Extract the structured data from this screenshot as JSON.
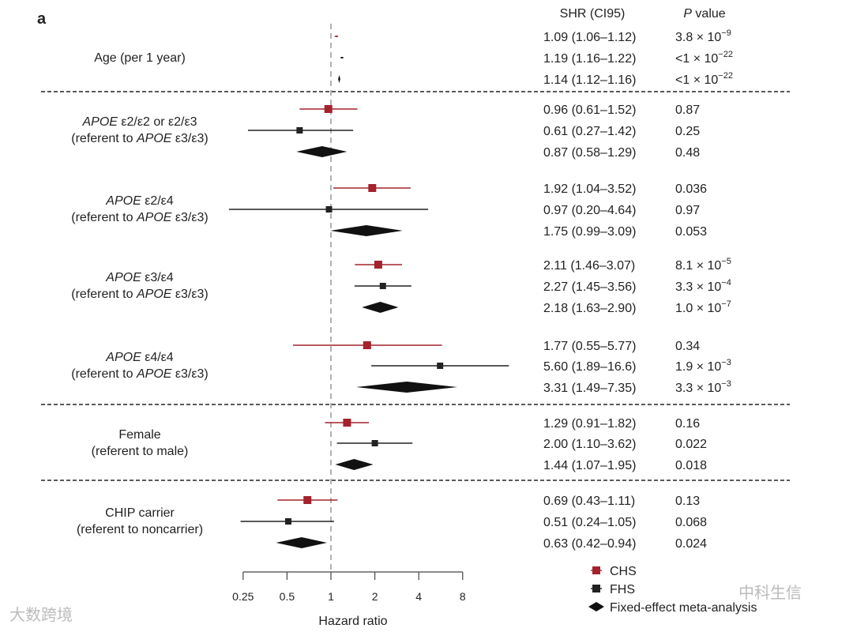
{
  "panel_label": "a",
  "colors": {
    "CHS": "#a3222b",
    "FHS": "#222222",
    "Meta": "#111111",
    "refline": "#999999"
  },
  "watermarks": [
    "大数跨境",
    "中科生信"
  ],
  "chart_data": {
    "type": "forest",
    "xlabel": "Hazard ratio",
    "xscale": "log2",
    "xlim": [
      0.25,
      8
    ],
    "xticks": [
      "0.25",
      "0.5",
      "1",
      "2",
      "4",
      "8"
    ],
    "xtick_values": [
      0.25,
      0.5,
      1,
      2,
      4,
      8
    ],
    "reference_line": 1,
    "column_headers": {
      "shr": "SHR (CI95)",
      "p": "P value"
    },
    "legend": [
      {
        "key": "CHS",
        "label": "CHS",
        "marker": "square"
      },
      {
        "key": "FHS",
        "label": "FHS",
        "marker": "square"
      },
      {
        "key": "Meta",
        "label": "Fixed-effect meta-analysis",
        "marker": "diamond"
      }
    ],
    "legend_position": "bottom-right",
    "groups": [
      {
        "label": [
          "Age (per 1 year)"
        ],
        "rows": [
          {
            "study": "CHS",
            "hr": 1.09,
            "lo": 1.06,
            "hi": 1.12,
            "text": "1.09 (1.06–1.12)",
            "p": {
              "m": "3.8 × 10",
              "e": "−9"
            }
          },
          {
            "study": "FHS",
            "hr": 1.19,
            "lo": 1.16,
            "hi": 1.22,
            "text": "1.19 (1.16–1.22)",
            "p": {
              "m": "<1 × 10",
              "e": "−22"
            }
          },
          {
            "study": "Meta",
            "hr": 1.14,
            "lo": 1.12,
            "hi": 1.16,
            "text": "1.14 (1.12–1.16)",
            "p": {
              "m": "<1 × 10",
              "e": "−22"
            }
          }
        ]
      },
      {
        "label": [
          "APOE ε2/ε2 or ε2/ε3",
          "(referent to APOE ε3/ε3)"
        ],
        "rows": [
          {
            "study": "CHS",
            "hr": 0.96,
            "lo": 0.61,
            "hi": 1.52,
            "text": "0.96 (0.61–1.52)",
            "p": {
              "m": "0.87"
            }
          },
          {
            "study": "FHS",
            "hr": 0.61,
            "lo": 0.27,
            "hi": 1.42,
            "text": "0.61 (0.27–1.42)",
            "p": {
              "m": "0.25"
            }
          },
          {
            "study": "Meta",
            "hr": 0.87,
            "lo": 0.58,
            "hi": 1.29,
            "text": "0.87 (0.58–1.29)",
            "p": {
              "m": "0.48"
            }
          }
        ]
      },
      {
        "label": [
          "APOE ε2/ε4",
          "(referent to APOE ε3/ε3)"
        ],
        "rows": [
          {
            "study": "CHS",
            "hr": 1.92,
            "lo": 1.04,
            "hi": 3.52,
            "text": "1.92 (1.04–3.52)",
            "p": {
              "m": "0.036"
            }
          },
          {
            "study": "FHS",
            "hr": 0.97,
            "lo": 0.2,
            "hi": 4.64,
            "text": "0.97 (0.20–4.64)",
            "p": {
              "m": "0.97"
            }
          },
          {
            "study": "Meta",
            "hr": 1.75,
            "lo": 0.99,
            "hi": 3.09,
            "text": "1.75 (0.99–3.09)",
            "p": {
              "m": "0.053"
            }
          }
        ]
      },
      {
        "label": [
          "APOE ε3/ε4",
          "(referent to APOE ε3/ε3)"
        ],
        "rows": [
          {
            "study": "CHS",
            "hr": 2.11,
            "lo": 1.46,
            "hi": 3.07,
            "text": "2.11 (1.46–3.07)",
            "p": {
              "m": "8.1 × 10",
              "e": "−5"
            }
          },
          {
            "study": "FHS",
            "hr": 2.27,
            "lo": 1.45,
            "hi": 3.56,
            "text": "2.27 (1.45–3.56)",
            "p": {
              "m": "3.3 × 10",
              "e": "−4"
            }
          },
          {
            "study": "Meta",
            "hr": 2.18,
            "lo": 1.63,
            "hi": 2.9,
            "text": "2.18 (1.63–2.90)",
            "p": {
              "m": "1.0 × 10",
              "e": "−7"
            }
          }
        ]
      },
      {
        "label": [
          "APOE ε4/ε4",
          "(referent to APOE ε3/ε3)"
        ],
        "rows": [
          {
            "study": "CHS",
            "hr": 1.77,
            "lo": 0.55,
            "hi": 5.77,
            "text": "1.77 (0.55–5.77)",
            "p": {
              "m": "0.34"
            }
          },
          {
            "study": "FHS",
            "hr": 5.6,
            "lo": 1.89,
            "hi": 16.6,
            "text": "5.60 (1.89–16.6)",
            "p": {
              "m": "1.9 × 10",
              "e": "−3"
            }
          },
          {
            "study": "Meta",
            "hr": 3.31,
            "lo": 1.49,
            "hi": 7.35,
            "text": "3.31 (1.49–7.35)",
            "p": {
              "m": "3.3 × 10",
              "e": "−3"
            }
          }
        ]
      },
      {
        "label": [
          "Female",
          "(referent to male)"
        ],
        "rows": [
          {
            "study": "CHS",
            "hr": 1.29,
            "lo": 0.91,
            "hi": 1.82,
            "text": "1.29 (0.91–1.82)",
            "p": {
              "m": "0.16"
            }
          },
          {
            "study": "FHS",
            "hr": 2.0,
            "lo": 1.1,
            "hi": 3.62,
            "text": "2.00 (1.10–3.62)",
            "p": {
              "m": "0.022"
            }
          },
          {
            "study": "Meta",
            "hr": 1.44,
            "lo": 1.07,
            "hi": 1.95,
            "text": "1.44 (1.07–1.95)",
            "p": {
              "m": "0.018"
            }
          }
        ]
      },
      {
        "label": [
          "CHIP carrier",
          "(referent to noncarrier)"
        ],
        "rows": [
          {
            "study": "CHS",
            "hr": 0.69,
            "lo": 0.43,
            "hi": 1.11,
            "text": "0.69 (0.43–1.11)",
            "p": {
              "m": "0.13"
            }
          },
          {
            "study": "FHS",
            "hr": 0.51,
            "lo": 0.24,
            "hi": 1.05,
            "text": "0.51 (0.24–1.05)",
            "p": {
              "m": "0.068"
            }
          },
          {
            "study": "Meta",
            "hr": 0.63,
            "lo": 0.42,
            "hi": 0.94,
            "text": "0.63 (0.42–0.94)",
            "p": {
              "m": "0.024"
            }
          }
        ]
      }
    ]
  }
}
